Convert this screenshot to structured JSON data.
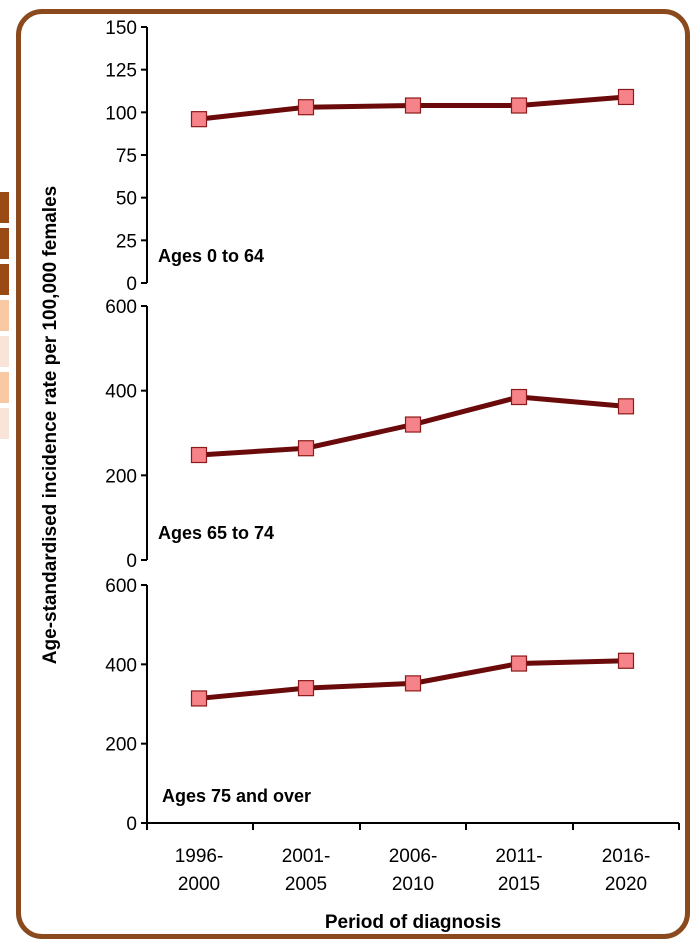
{
  "chart_data": {
    "type": "line",
    "xlabel": "Period of diagnosis",
    "ylabel": "Age-standardised incidence rate per 100,000 females",
    "categories": [
      [
        "1996-",
        "2000"
      ],
      [
        "2001-",
        "2005"
      ],
      [
        "2006-",
        "2010"
      ],
      [
        "2011-",
        "2015"
      ],
      [
        "2016-",
        "2020"
      ]
    ],
    "colors": {
      "line": "#6b0a0a",
      "marker_fill": "#f7838a",
      "marker_stroke": "#8b1a1a",
      "frame": "#8a4a1e"
    },
    "panels": [
      {
        "label": "Ages 0 to 64",
        "ylim": [
          0,
          150
        ],
        "yticks": [
          0,
          25,
          50,
          75,
          100,
          125,
          150
        ],
        "values": [
          96,
          103,
          104,
          104,
          109
        ]
      },
      {
        "label": "Ages 65 to 74",
        "ylim": [
          0,
          600
        ],
        "yticks": [
          0,
          200,
          400,
          600
        ],
        "values": [
          248,
          264,
          320,
          385,
          363
        ]
      },
      {
        "label": "Ages 75 and over",
        "ylim": [
          0,
          600
        ],
        "yticks": [
          0,
          200,
          400,
          600
        ],
        "values": [
          314,
          340,
          352,
          402,
          409
        ]
      }
    ]
  },
  "side_swatch_colors": [
    "#9a4a14",
    "#9a4a14",
    "#9a4a14",
    "#f9c9a4",
    "#f9e4d9",
    "#f9c9a4",
    "#f9e4d9"
  ]
}
